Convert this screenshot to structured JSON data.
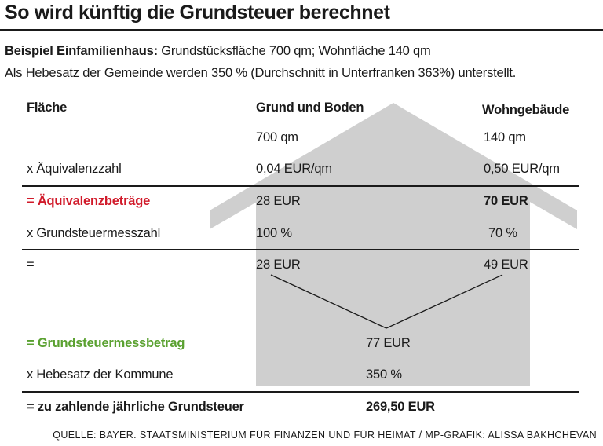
{
  "title": "So wird künftig die Grundsteuer berechnet",
  "intro": {
    "example_label": "Beispiel Einfamilienhaus:",
    "example_text": " Grundstücksfläche 700 qm; Wohnfläche 140 qm",
    "hebesatz_text": "Als Hebesatz der Gemeinde werden 350 % (Durchschnitt in Unterfranken 363%) unterstellt."
  },
  "columns": {
    "label": "Fläche",
    "ground": "Grund und Boden",
    "building": "Wohngebäude"
  },
  "rows": {
    "area": {
      "label": "",
      "ground": "700 qm",
      "building": "140 qm"
    },
    "equivalence_number": {
      "label": "x Äquivalenzzahl",
      "ground": "0,04 EUR/qm",
      "building": "0,50 EUR/qm"
    },
    "equivalence_amounts": {
      "label": "= Äquivalenzbeträge",
      "ground": "28 EUR",
      "building": "70 EUR"
    },
    "tax_rate": {
      "label": "x Grundsteuermesszahl",
      "ground": "100 %",
      "building": "70 %"
    },
    "equals": {
      "label": "=",
      "ground": "28 EUR",
      "building": "49 EUR"
    },
    "tax_base_amount": {
      "label": "= Grundsteuermessbetrag",
      "value": "77 EUR"
    },
    "municipal_rate": {
      "label": "x Hebesatz der Kommune",
      "value": "350 %"
    },
    "annual_tax": {
      "label": "= zu zahlende jährliche Grundsteuer",
      "value": "269,50 EUR"
    }
  },
  "footer": "Quelle: Bayer. Staatsministerium für Finanzen und für Heimat / MP-Grafik: Alissa Bakhchevan",
  "colors": {
    "house": "#cfcfcf",
    "highlight_red": "#d11a2a",
    "highlight_green": "#5aa130",
    "text": "#1a1a1a"
  }
}
